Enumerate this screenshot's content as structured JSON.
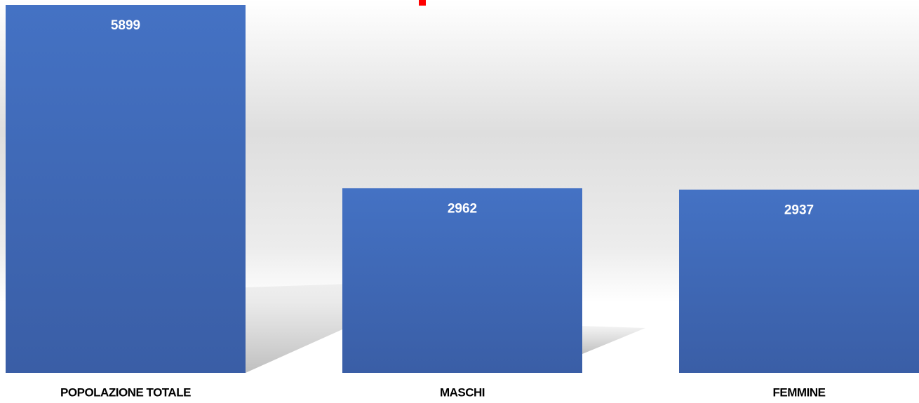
{
  "chart_data": {
    "type": "bar",
    "categories": [
      "POPOLAZIONE TOTALE",
      "MASCHI",
      "FEMMINE"
    ],
    "values": [
      5899,
      2962,
      2937
    ],
    "color": "#4472c4"
  }
}
